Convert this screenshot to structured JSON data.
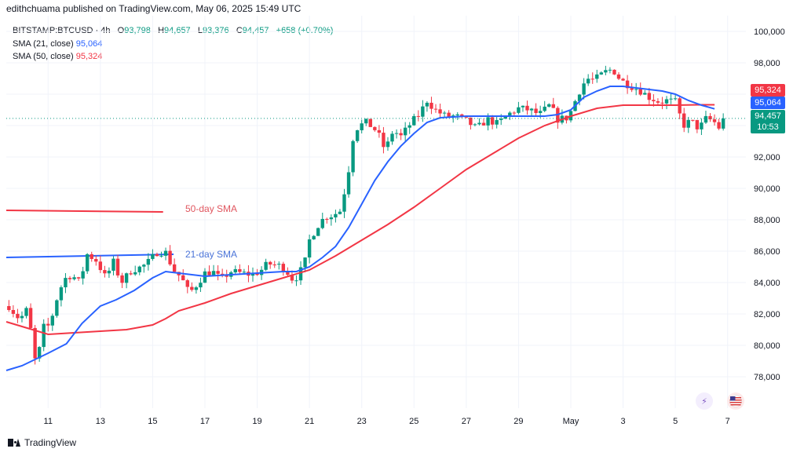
{
  "header": {
    "text": "edithchuama published on TradingView.com, May 06, 2025 15:49 UTC"
  },
  "legend": {
    "symbol": "BITSTAMP:BTCUSD · 4h",
    "o_label": "O",
    "o_value": "93,798",
    "h_label": "H",
    "h_value": "94,657",
    "l_label": "L",
    "l_value": "93,376",
    "c_label": "C",
    "c_value": "94,457",
    "change": "+658 (+0.70%)",
    "sma21_label": "SMA (21, close)",
    "sma21_value": "95,064",
    "sma50_label": "SMA (50, close)",
    "sma50_value": "95,324"
  },
  "price_tags": {
    "sma50": "95,324",
    "sma21": "95,064",
    "last": "94,457",
    "countdown": "10:53"
  },
  "annotations": {
    "sma50_text": "50-day SMA",
    "sma21_text": "21-day SMA"
  },
  "footer": {
    "brand": "TradingView"
  },
  "icons": [
    "tradingview-logo-icon",
    "replay-icon",
    "us-flag-icon"
  ],
  "colors": {
    "up": "#089981",
    "down": "#f23645",
    "sma21": "#2962ff",
    "sma50": "#f23645"
  },
  "chart_data": {
    "type": "candlestick",
    "symbol": "BITSTAMP:BTCUSD",
    "interval": "4h",
    "ylim": [
      76000,
      101000
    ],
    "y_ticks": [
      "78,000",
      "80,000",
      "82,000",
      "84,000",
      "86,000",
      "88,000",
      "90,000",
      "92,000",
      "94,000",
      "96,000",
      "98,000",
      "100,000"
    ],
    "y_tick_values": [
      78000,
      80000,
      82000,
      84000,
      86000,
      88000,
      90000,
      92000,
      94000,
      96000,
      98000,
      100000
    ],
    "xlim": [
      9.4,
      37.7
    ],
    "x_ticks": [
      "11",
      "13",
      "15",
      "17",
      "19",
      "21",
      "23",
      "25",
      "27",
      "29",
      "May",
      "3",
      "5",
      "7"
    ],
    "x_tick_values": [
      11,
      13,
      15,
      17,
      19,
      21,
      23,
      25,
      27,
      29,
      31,
      33,
      35,
      37
    ],
    "last_price": 94457,
    "anchors": [
      [
        9.55,
        82500
      ],
      [
        9.75,
        81900
      ],
      [
        9.95,
        81700
      ],
      [
        10.15,
        82300
      ],
      [
        10.3,
        81600
      ],
      [
        10.45,
        78900
      ],
      [
        10.65,
        79600
      ],
      [
        10.85,
        81300
      ],
      [
        11.05,
        81200
      ],
      [
        11.3,
        82800
      ],
      [
        11.6,
        84200
      ],
      [
        11.9,
        84500
      ],
      [
        12.2,
        84000
      ],
      [
        12.5,
        85800
      ],
      [
        12.85,
        85400
      ],
      [
        13.2,
        84300
      ],
      [
        13.5,
        85300
      ],
      [
        13.8,
        84000
      ],
      [
        14.2,
        84800
      ],
      [
        14.6,
        85000
      ],
      [
        14.9,
        85400
      ],
      [
        15.2,
        86000
      ],
      [
        15.5,
        85900
      ],
      [
        15.8,
        84800
      ],
      [
        16.1,
        84300
      ],
      [
        16.4,
        83300
      ],
      [
        16.7,
        83900
      ],
      [
        17.0,
        84600
      ],
      [
        17.3,
        84700
      ],
      [
        17.6,
        84200
      ],
      [
        18.0,
        84700
      ],
      [
        18.4,
        84600
      ],
      [
        18.8,
        84500
      ],
      [
        19.1,
        84700
      ],
      [
        19.4,
        85200
      ],
      [
        19.8,
        85100
      ],
      [
        20.1,
        84800
      ],
      [
        20.4,
        84100
      ],
      [
        20.8,
        85100
      ],
      [
        21.0,
        86700
      ],
      [
        21.3,
        87600
      ],
      [
        21.6,
        88200
      ],
      [
        21.9,
        88300
      ],
      [
        22.2,
        88600
      ],
      [
        22.5,
        91200
      ],
      [
        22.7,
        93600
      ],
      [
        22.9,
        94000
      ],
      [
        23.2,
        94200
      ],
      [
        23.6,
        93600
      ],
      [
        23.9,
        92400
      ],
      [
        24.2,
        93700
      ],
      [
        24.5,
        93300
      ],
      [
        24.9,
        94200
      ],
      [
        25.2,
        94700
      ],
      [
        25.5,
        95600
      ],
      [
        25.8,
        95000
      ],
      [
        26.2,
        94600
      ],
      [
        26.6,
        94600
      ],
      [
        27.0,
        94300
      ],
      [
        27.4,
        93800
      ],
      [
        27.8,
        94400
      ],
      [
        28.2,
        94100
      ],
      [
        28.6,
        94700
      ],
      [
        29.0,
        95100
      ],
      [
        29.4,
        95000
      ],
      [
        29.8,
        94700
      ],
      [
        30.2,
        95300
      ],
      [
        30.5,
        94400
      ],
      [
        30.9,
        94500
      ],
      [
        31.3,
        96100
      ],
      [
        31.6,
        97000
      ],
      [
        31.9,
        96900
      ],
      [
        32.3,
        97400
      ],
      [
        32.6,
        97600
      ],
      [
        32.9,
        96900
      ],
      [
        33.2,
        96600
      ],
      [
        33.6,
        96300
      ],
      [
        34.0,
        95800
      ],
      [
        34.4,
        95500
      ],
      [
        34.7,
        95600
      ],
      [
        35.0,
        95500
      ],
      [
        35.3,
        94000
      ],
      [
        35.6,
        94300
      ],
      [
        35.9,
        93800
      ],
      [
        36.2,
        94500
      ],
      [
        36.5,
        94200
      ],
      [
        36.7,
        93800
      ],
      [
        36.85,
        94457
      ]
    ],
    "sma21": [
      [
        9.4,
        78400
      ],
      [
        10.0,
        78700
      ],
      [
        11.0,
        79500
      ],
      [
        11.7,
        80100
      ],
      [
        12.3,
        81400
      ],
      [
        13.0,
        82500
      ],
      [
        13.6,
        82900
      ],
      [
        14.3,
        83500
      ],
      [
        15.0,
        84300
      ],
      [
        15.5,
        84700
      ],
      [
        16.0,
        84600
      ],
      [
        17.0,
        84400
      ],
      [
        18.0,
        84500
      ],
      [
        19.0,
        84600
      ],
      [
        20.0,
        84700
      ],
      [
        20.5,
        84700
      ],
      [
        21.0,
        85000
      ],
      [
        21.5,
        85600
      ],
      [
        22.0,
        86300
      ],
      [
        22.5,
        87500
      ],
      [
        23.0,
        89000
      ],
      [
        23.5,
        90500
      ],
      [
        24.0,
        91700
      ],
      [
        24.5,
        92700
      ],
      [
        25.0,
        93500
      ],
      [
        25.5,
        94200
      ],
      [
        26.0,
        94500
      ],
      [
        27.0,
        94600
      ],
      [
        28.0,
        94600
      ],
      [
        29.0,
        94600
      ],
      [
        30.0,
        94600
      ],
      [
        30.5,
        94700
      ],
      [
        31.0,
        95000
      ],
      [
        31.5,
        95800
      ],
      [
        32.0,
        96200
      ],
      [
        32.5,
        96500
      ],
      [
        33.0,
        96500
      ],
      [
        33.5,
        96400
      ],
      [
        34.0,
        96300
      ],
      [
        34.5,
        96200
      ],
      [
        35.0,
        96000
      ],
      [
        35.5,
        95600
      ],
      [
        36.0,
        95300
      ],
      [
        36.5,
        95064
      ]
    ],
    "sma50": [
      [
        9.4,
        81500
      ],
      [
        10.0,
        81200
      ],
      [
        11.0,
        80700
      ],
      [
        12.0,
        80800
      ],
      [
        13.0,
        80900
      ],
      [
        14.0,
        81000
      ],
      [
        15.0,
        81300
      ],
      [
        15.5,
        81700
      ],
      [
        16.0,
        82200
      ],
      [
        17.0,
        82700
      ],
      [
        18.0,
        83300
      ],
      [
        19.0,
        83800
      ],
      [
        20.0,
        84300
      ],
      [
        21.0,
        84800
      ],
      [
        22.0,
        85700
      ],
      [
        23.0,
        86700
      ],
      [
        24.0,
        87700
      ],
      [
        25.0,
        88800
      ],
      [
        26.0,
        90000
      ],
      [
        27.0,
        91200
      ],
      [
        28.0,
        92200
      ],
      [
        29.0,
        93200
      ],
      [
        30.0,
        94000
      ],
      [
        31.0,
        94600
      ],
      [
        32.0,
        95100
      ],
      [
        33.0,
        95300
      ],
      [
        34.0,
        95300
      ],
      [
        35.0,
        95300
      ],
      [
        36.0,
        95324
      ],
      [
        36.5,
        95324
      ]
    ],
    "legacy_lines": [
      {
        "name": "50-day SMA",
        "x": [
          9.4,
          15.4
        ],
        "y": [
          88600,
          88500
        ],
        "color": "#f23645"
      },
      {
        "name": "21-day SMA",
        "x": [
          9.4,
          15.8
        ],
        "y": [
          85600,
          85800
        ],
        "color": "#2962ff"
      }
    ]
  }
}
